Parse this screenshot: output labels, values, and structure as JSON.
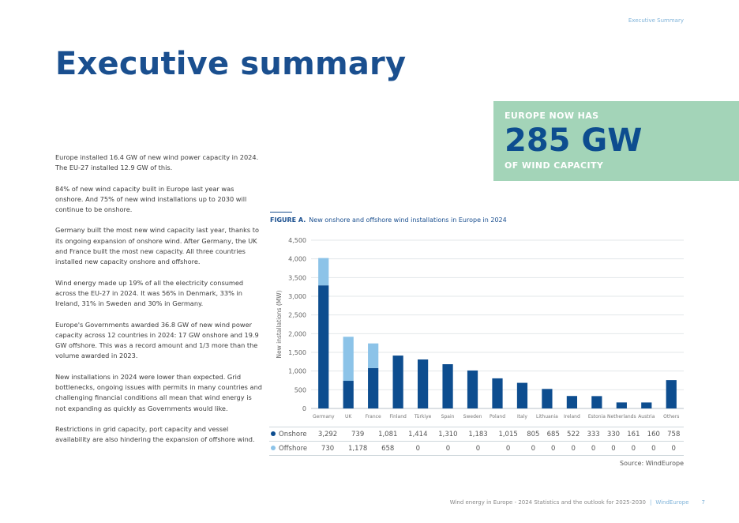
{
  "running_head": "Executive Summary",
  "title": "Executive summary",
  "highlight": {
    "top": "EUROPE NOW HAS",
    "big": "285 GW",
    "bottom": "OF WIND CAPACITY"
  },
  "paragraphs": [
    "Europe installed 16.4 GW of new wind power capacity in 2024. The EU-27 installed 12.9 GW of this.",
    "84% of new wind capacity built in Europe last year was onshore. And 75% of new wind installations up to 2030 will continue to be onshore.",
    "Germany built the most new wind capacity last year, thanks to its ongoing expansion of onshore wind. After Germany, the UK and France built the most new capacity. All three countries installed new capacity onshore and offshore.",
    "Wind energy made up 19% of all the electricity consumed across the EU-27 in 2024. It was 56% in Denmark, 33% in Ireland, 31% in Sweden and 30% in Germany.",
    "Europe's Governments awarded 36.8 GW of new wind power capacity across 12 countries in 2024: 17 GW onshore and 19.9 GW offshore. This was a record amount and 1/3 more than the volume awarded in 2023.",
    "New installations in 2024 were lower than expected. Grid bottlenecks, ongoing issues with permits in many countries and challenging financial conditions all mean that wind energy is not expanding as quickly as Governments would like.",
    "Restrictions in grid capacity, port capacity and vessel availability are also hindering the expansion of offshore wind."
  ],
  "figure": {
    "label": "FIGURE A.",
    "caption": "New onshore and offshore wind installations in Europe in 2024"
  },
  "chart_data": {
    "type": "bar",
    "stacked": true,
    "ylabel": "New installations (MW)",
    "ylim": [
      0,
      4500
    ],
    "yticks": [
      0,
      500,
      1000,
      1500,
      2000,
      2500,
      3000,
      3500,
      4000,
      4500
    ],
    "ytick_labels": [
      "0",
      "500",
      "1,000",
      "1,500",
      "2,000",
      "2,500",
      "3,000",
      "3,500",
      "4,000",
      "4,500"
    ],
    "grid": true,
    "categories": [
      "Germany",
      "UK",
      "France",
      "Finland",
      "Türkiye",
      "Spain",
      "Sweden",
      "Poland",
      "Italy",
      "Lithuania",
      "Ireland",
      "Estonia",
      "Netherlands",
      "Austria",
      "Others"
    ],
    "series": [
      {
        "name": "Onshore",
        "color": "#0d4d8f",
        "values": [
          3292,
          739,
          1081,
          1414,
          1310,
          1183,
          1015,
          805,
          685,
          522,
          333,
          330,
          161,
          160,
          758
        ],
        "labels": [
          "3,292",
          "739",
          "1,081",
          "1,414",
          "1,310",
          "1,183",
          "1,015",
          "805",
          "685",
          "522",
          "333",
          "330",
          "161",
          "160",
          "758"
        ]
      },
      {
        "name": "Offshore",
        "color": "#8cc3e8",
        "values": [
          730,
          1178,
          658,
          0,
          0,
          0,
          0,
          0,
          0,
          0,
          0,
          0,
          0,
          0,
          0
        ],
        "labels": [
          "730",
          "1,178",
          "658",
          "0",
          "0",
          "0",
          "0",
          "0",
          "0",
          "0",
          "0",
          "0",
          "0",
          "0",
          "0"
        ]
      }
    ]
  },
  "source": "Source: WindEurope",
  "footer": {
    "text": "Wind energy in Europe - 2024 Statistics and the outlook for 2025-2030",
    "brand": "WindEurope",
    "page": "7"
  }
}
